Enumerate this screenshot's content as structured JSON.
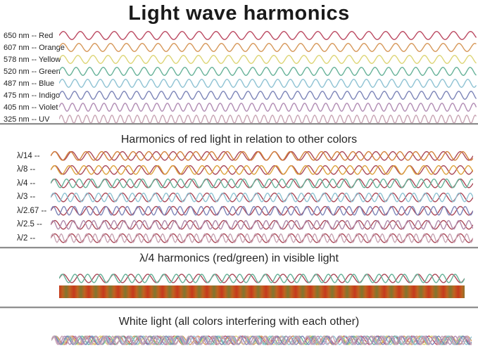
{
  "title": "Light wave harmonics",
  "section1": {
    "rows": [
      {
        "label": "650 nm -- Red",
        "color": "#bb4a62",
        "period": 24.1
      },
      {
        "label": "607 nm -- Orange",
        "color": "#d6985a",
        "period": 22.5
      },
      {
        "label": "578 nm -- Yellow",
        "color": "#ddd577",
        "period": 21.4
      },
      {
        "label": "520 nm -- Green",
        "color": "#67b299",
        "period": 19.3
      },
      {
        "label": "487 nm -- Blue",
        "color": "#8fc3d3",
        "period": 18.0
      },
      {
        "label": "475 nm -- Indigo",
        "color": "#7d85b8",
        "period": 17.6
      },
      {
        "label": "405 nm -- Violet",
        "color": "#b18cb4",
        "period": 15.0
      },
      {
        "label": "325 nm -- UV",
        "color": "#c9a6b5",
        "period": 12.0
      }
    ]
  },
  "section2": {
    "title": "Harmonics of red light in relation to other colors",
    "base_wave": {
      "color": "#aa4757",
      "period": 24.0
    },
    "rows": [
      {
        "label": "λ/14 --",
        "color": "#d2823c",
        "period": 22.3
      },
      {
        "label": "λ/8 --",
        "color": "#dda33e",
        "period": 21.0
      },
      {
        "label": "λ/4 --",
        "color": "#67b299",
        "period": 18.0
      },
      {
        "label": "λ/3 --",
        "color": "#8fc3d3",
        "period": 16.0
      },
      {
        "label": "λ/2.67 --",
        "color": "#7d85b8",
        "period": 15.0
      },
      {
        "label": "λ/2.5 --",
        "color": "#b08bab",
        "period": 14.4
      },
      {
        "label": "λ/2 --",
        "color": "#c9a6b5",
        "period": 12.0
      }
    ]
  },
  "section3": {
    "title": "λ/4 harmonics (red/green) in visible light",
    "waves": [
      {
        "color": "#aa4757",
        "period": 24.0
      },
      {
        "color": "#67b299",
        "period": 18.0
      }
    ],
    "band_colors": [
      "#c6391d",
      "#c06320",
      "#7f762f"
    ]
  },
  "section4": {
    "title": "White light (all colors interfering with each other)",
    "waves": [
      {
        "color": "#bb4a62",
        "period": 24.1
      },
      {
        "color": "#d6985a",
        "period": 22.5
      },
      {
        "color": "#ddd577",
        "period": 21.4
      },
      {
        "color": "#67b299",
        "period": 19.3
      },
      {
        "color": "#8fc3d3",
        "period": 18.0
      },
      {
        "color": "#7d85b8",
        "period": 17.6
      },
      {
        "color": "#b18cb4",
        "period": 15.0
      },
      {
        "color": "#c9a6b5",
        "period": 12.0
      }
    ]
  },
  "divider_color": "#8f8f8f"
}
